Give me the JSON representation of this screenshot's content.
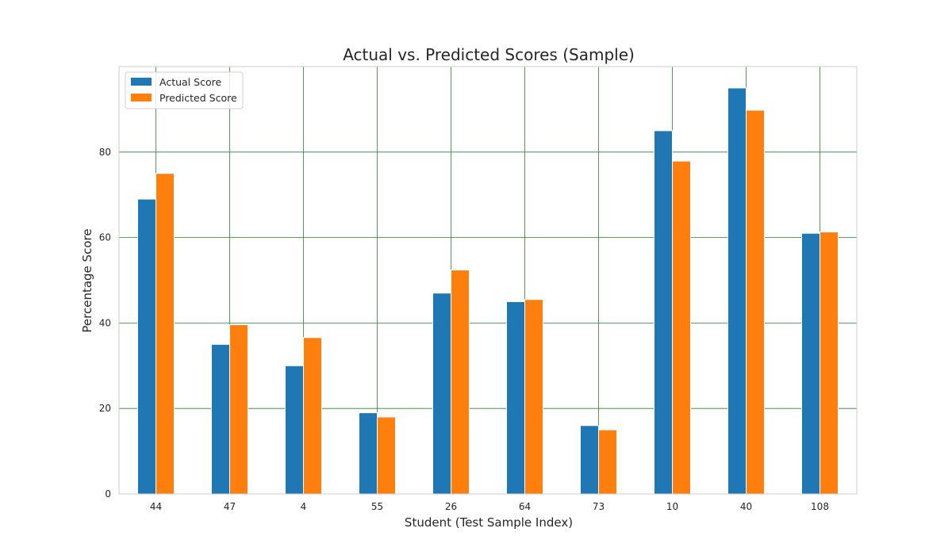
{
  "chart_data": {
    "type": "bar",
    "title": "Actual vs. Predicted Scores (Sample)",
    "xlabel": "Student (Test Sample Index)",
    "ylabel": "Percentage Score",
    "categories": [
      "44",
      "47",
      "4",
      "55",
      "26",
      "64",
      "73",
      "10",
      "40",
      "108"
    ],
    "series": [
      {
        "name": "Actual Score",
        "color": "#1f77b4",
        "values": [
          69,
          35,
          30,
          19,
          47,
          45,
          16,
          85,
          95,
          61
        ]
      },
      {
        "name": "Predicted Score",
        "color": "#ff7f0e",
        "values": [
          75.0,
          39.6,
          36.6,
          18.0,
          52.4,
          45.5,
          15.0,
          77.9,
          89.8,
          61.3
        ]
      }
    ],
    "ylim": [
      0,
      100
    ],
    "yticks": [
      0,
      20,
      40,
      60,
      80
    ],
    "grid": true,
    "grid_color": "#2e7d32",
    "legend_position": "top-left"
  }
}
